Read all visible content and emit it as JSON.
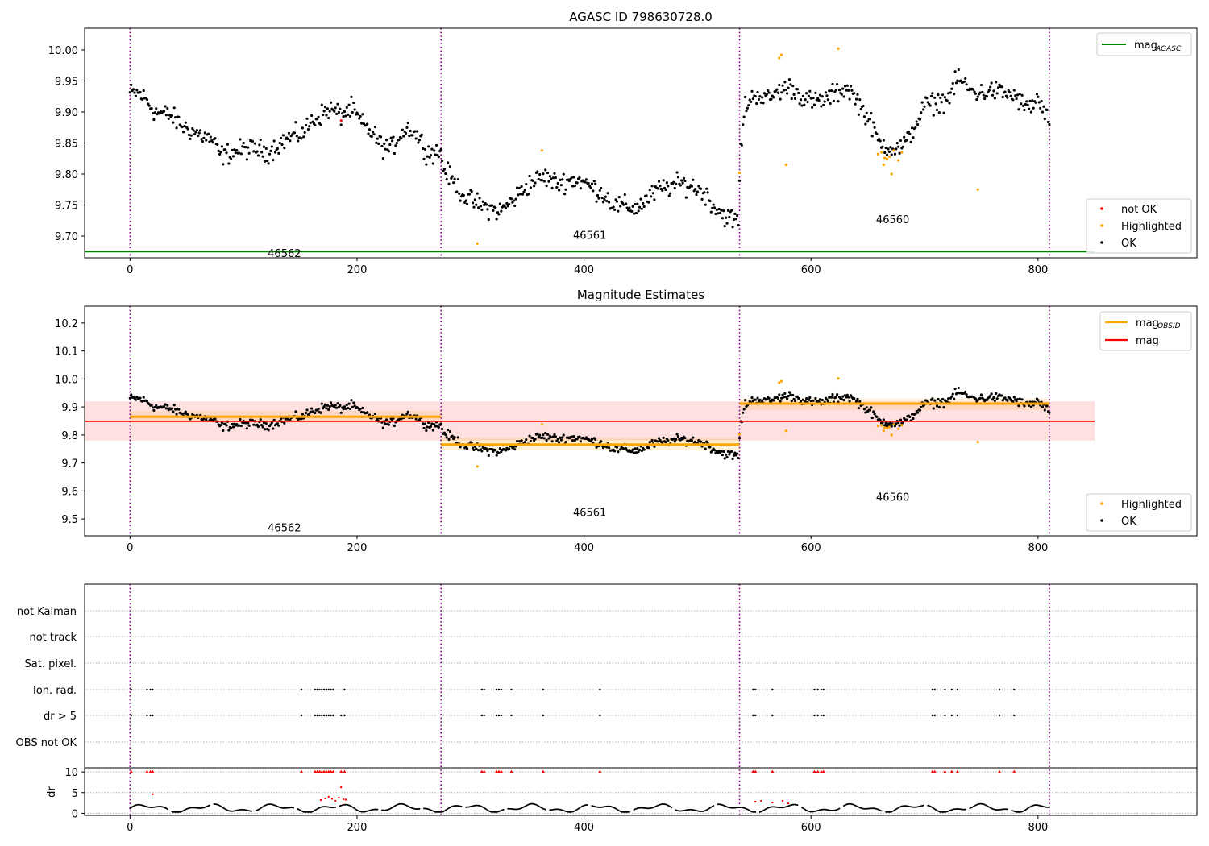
{
  "chart_data": [
    {
      "type": "scatter",
      "title": "AGASC ID 798630728.0",
      "xlim": [
        -40,
        940
      ],
      "ylim": [
        9.665,
        10.035
      ],
      "yticks": [
        9.7,
        9.75,
        9.8,
        9.85,
        9.9,
        9.95,
        10.0
      ],
      "ytick_labels": [
        "9.70",
        "9.75",
        "9.80",
        "9.85",
        "9.90",
        "9.95",
        "10.00"
      ],
      "xticks": [
        0,
        200,
        400,
        600,
        800
      ],
      "xtick_labels": [
        "0",
        "200",
        "400",
        "600",
        "800"
      ],
      "segment_boundaries": [
        0,
        274,
        537,
        810
      ],
      "segment_labels": [
        {
          "text": "46562",
          "x": 136,
          "y": 9.673
        },
        {
          "text": "46561",
          "x": 405,
          "y": 9.702
        },
        {
          "text": "46560",
          "x": 672,
          "y": 9.727
        }
      ],
      "lines": [
        {
          "name": "mag_AGASC",
          "y": 9.675,
          "x": [
            -40,
            850
          ],
          "color": "#008000"
        }
      ],
      "legend_lines": {
        "label": "mag",
        "subscript": "AGASC",
        "position": "upper right"
      },
      "legend_points": {
        "position": "lower right",
        "entries": [
          {
            "label": "not OK",
            "color": "#ff0000"
          },
          {
            "label": "Highlighted",
            "color": "#ffa500"
          },
          {
            "label": "OK",
            "color": "#000000"
          }
        ]
      },
      "series": [
        {
          "name": "OK",
          "color": "#000000",
          "trend": [
            [
              0,
              9.93
            ],
            [
              8,
              9.93
            ],
            [
              14,
              9.92
            ],
            [
              22,
              9.9
            ],
            [
              35,
              9.895
            ],
            [
              48,
              9.875
            ],
            [
              60,
              9.865
            ],
            [
              72,
              9.855
            ],
            [
              80,
              9.83
            ],
            [
              90,
              9.835
            ],
            [
              100,
              9.84
            ],
            [
              112,
              9.84
            ],
            [
              122,
              9.835
            ],
            [
              132,
              9.85
            ],
            [
              142,
              9.86
            ],
            [
              152,
              9.865
            ],
            [
              160,
              9.885
            ],
            [
              168,
              9.895
            ],
            [
              176,
              9.905
            ],
            [
              186,
              9.895
            ],
            [
              195,
              9.905
            ],
            [
              205,
              9.88
            ],
            [
              214,
              9.865
            ],
            [
              222,
              9.845
            ],
            [
              230,
              9.84
            ],
            [
              238,
              9.865
            ],
            [
              246,
              9.875
            ],
            [
              254,
              9.86
            ],
            [
              262,
              9.835
            ],
            [
              274,
              9.835
            ],
            [
              276,
              9.81
            ],
            [
              286,
              9.785
            ],
            [
              296,
              9.762
            ],
            [
              306,
              9.752
            ],
            [
              316,
              9.745
            ],
            [
              326,
              9.74
            ],
            [
              336,
              9.755
            ],
            [
              346,
              9.775
            ],
            [
              356,
              9.79
            ],
            [
              366,
              9.795
            ],
            [
              376,
              9.785
            ],
            [
              386,
              9.79
            ],
            [
              396,
              9.79
            ],
            [
              406,
              9.78
            ],
            [
              416,
              9.77
            ],
            [
              426,
              9.75
            ],
            [
              436,
              9.748
            ],
            [
              446,
              9.745
            ],
            [
              456,
              9.76
            ],
            [
              466,
              9.775
            ],
            [
              476,
              9.78
            ],
            [
              486,
              9.785
            ],
            [
              496,
              9.78
            ],
            [
              506,
              9.77
            ],
            [
              516,
              9.745
            ],
            [
              526,
              9.73
            ],
            [
              536,
              9.725
            ],
            [
              538,
              9.84
            ],
            [
              542,
              9.91
            ],
            [
              552,
              9.93
            ],
            [
              562,
              9.92
            ],
            [
              572,
              9.935
            ],
            [
              582,
              9.94
            ],
            [
              592,
              9.925
            ],
            [
              602,
              9.915
            ],
            [
              612,
              9.92
            ],
            [
              622,
              9.93
            ],
            [
              632,
              9.94
            ],
            [
              642,
              9.915
            ],
            [
              652,
              9.885
            ],
            [
              660,
              9.85
            ],
            [
              668,
              9.845
            ],
            [
              676,
              9.84
            ],
            [
              684,
              9.85
            ],
            [
              692,
              9.88
            ],
            [
              700,
              9.91
            ],
            [
              710,
              9.915
            ],
            [
              720,
              9.92
            ],
            [
              730,
              9.955
            ],
            [
              740,
              9.935
            ],
            [
              750,
              9.93
            ],
            [
              760,
              9.935
            ],
            [
              770,
              9.93
            ],
            [
              780,
              9.925
            ],
            [
              790,
              9.905
            ],
            [
              800,
              9.92
            ],
            [
              810,
              9.88
            ]
          ],
          "noise": 0.016,
          "step": 1
        },
        {
          "name": "Highlighted",
          "color": "#ffa500",
          "points": [
            [
              537,
              9.802
            ],
            [
              572,
              9.987
            ],
            [
              574,
              9.992
            ],
            [
              578,
              9.815
            ],
            [
              624,
              10.002
            ],
            [
              306,
              9.688
            ],
            [
              363,
              9.838
            ],
            [
              659,
              9.832
            ],
            [
              662,
              9.835
            ],
            [
              665,
              9.826
            ],
            [
              667,
              9.824
            ],
            [
              669,
              9.828
            ],
            [
              671,
              9.8
            ],
            [
              673,
              9.838
            ],
            [
              677,
              9.822
            ],
            [
              680,
              9.835
            ],
            [
              664,
              9.815
            ],
            [
              747,
              9.775
            ]
          ]
        },
        {
          "name": "not OK",
          "color": "#ff0000",
          "points": [
            [
              186,
              9.886
            ]
          ]
        }
      ]
    },
    {
      "type": "scatter",
      "title": "Magnitude Estimates",
      "xlim": [
        -40,
        940
      ],
      "ylim": [
        9.44,
        10.26
      ],
      "yticks": [
        9.5,
        9.6,
        9.7,
        9.8,
        9.9,
        10.0,
        10.1,
        10.2
      ],
      "ytick_labels": [
        "9.5",
        "9.6",
        "9.7",
        "9.8",
        "9.9",
        "10.0",
        "10.1",
        "10.2"
      ],
      "xticks": [
        0,
        200,
        400,
        600,
        800
      ],
      "xtick_labels": [
        "0",
        "200",
        "400",
        "600",
        "800"
      ],
      "segment_boundaries": [
        0,
        274,
        537,
        810
      ],
      "segment_labels": [
        {
          "text": "46562",
          "x": 136,
          "y": 9.47
        },
        {
          "text": "46561",
          "x": 405,
          "y": 9.525
        },
        {
          "text": "46560",
          "x": 672,
          "y": 9.58
        }
      ],
      "bands": [
        {
          "x": [
            -40,
            850
          ],
          "y": [
            9.78,
            9.92
          ],
          "color": "#ff0000",
          "opacity": 0.12
        },
        {
          "x": [
            0,
            274
          ],
          "y": [
            9.845,
            9.885
          ],
          "color": "#ffa500",
          "opacity": 0.15
        },
        {
          "x": [
            274,
            537
          ],
          "y": [
            9.745,
            9.79
          ],
          "color": "#ffa500",
          "opacity": 0.15
        },
        {
          "x": [
            537,
            810
          ],
          "y": [
            9.89,
            9.93
          ],
          "color": "#ffa500",
          "opacity": 0.15
        }
      ],
      "lines": [
        {
          "name": "mag",
          "y": 9.849,
          "x": [
            -40,
            850
          ],
          "color": "#ff0000"
        },
        {
          "name": "mag_OBSID",
          "y": 9.865,
          "x": [
            0,
            274
          ],
          "color": "#ffa500"
        },
        {
          "name": "mag_OBSID",
          "y": 9.766,
          "x": [
            274,
            537
          ],
          "color": "#ffa500"
        },
        {
          "name": "mag_OBSID",
          "y": 9.912,
          "x": [
            537,
            810
          ],
          "color": "#ffa500"
        }
      ],
      "legend_lines": {
        "position": "upper right",
        "entries": [
          {
            "label": "mag",
            "subscript": "OBSID",
            "color": "#ffa500"
          },
          {
            "label": "mag",
            "subscript": "",
            "color": "#ff0000"
          }
        ]
      },
      "legend_points": {
        "position": "lower right",
        "entries": [
          {
            "label": "Highlighted",
            "color": "#ffa500"
          },
          {
            "label": "OK",
            "color": "#000000"
          }
        ]
      }
    },
    {
      "type": "scatter",
      "title": "",
      "xlim": [
        -40,
        940
      ],
      "xticks": [
        0,
        200,
        400,
        600,
        800
      ],
      "xtick_labels": [
        "0",
        "200",
        "400",
        "600",
        "800"
      ],
      "segment_boundaries": [
        0,
        274,
        537,
        810
      ],
      "flag_rows": [
        "not Kalman",
        "not track",
        "Sat. pixel.",
        "Ion. rad.",
        "dr > 5",
        "OBS not OK"
      ],
      "flag_points": {
        "Ion. rad.": [
          1,
          15,
          18,
          20,
          151,
          163,
          165,
          167,
          169,
          171,
          173,
          175,
          177,
          179,
          189,
          310,
          312,
          323,
          325,
          327,
          336,
          364,
          414,
          549,
          551,
          566,
          603,
          606,
          609,
          611,
          707,
          709,
          718,
          724,
          729,
          766,
          779
        ],
        "dr > 5": [
          1,
          15,
          18,
          20,
          151,
          163,
          165,
          167,
          169,
          171,
          173,
          175,
          177,
          179,
          186,
          189,
          310,
          312,
          323,
          325,
          327,
          336,
          364,
          414,
          549,
          551,
          566,
          603,
          606,
          609,
          611,
          707,
          709,
          718,
          724,
          729,
          766,
          779
        ]
      },
      "dr": {
        "ylabel": "dr",
        "ylim": [
          -0.5,
          11
        ],
        "yticks": [
          0,
          5,
          10
        ],
        "ytick_labels": [
          "0",
          "5",
          "10"
        ],
        "clipped_value": 10,
        "outliers": [
          [
            168,
            3.2
          ],
          [
            172,
            3.6
          ],
          [
            175,
            4.0
          ],
          [
            178,
            3.5
          ],
          [
            181,
            3.0
          ],
          [
            184,
            3.8
          ],
          [
            186,
            6.3
          ],
          [
            188,
            3.4
          ],
          [
            190,
            3.3
          ],
          [
            20,
            4.6
          ],
          [
            551,
            2.8
          ],
          [
            556,
            3.0
          ],
          [
            566,
            2.6
          ],
          [
            575,
            3.0
          ],
          [
            580,
            2.4
          ]
        ],
        "clipped": [
          1,
          15,
          18,
          20,
          151,
          163,
          165,
          167,
          169,
          171,
          173,
          175,
          177,
          179,
          186,
          189,
          310,
          312,
          323,
          325,
          327,
          336,
          364,
          414,
          549,
          551,
          566,
          603,
          606,
          609,
          611,
          707,
          709,
          718,
          724,
          729,
          766,
          779
        ]
      }
    }
  ]
}
